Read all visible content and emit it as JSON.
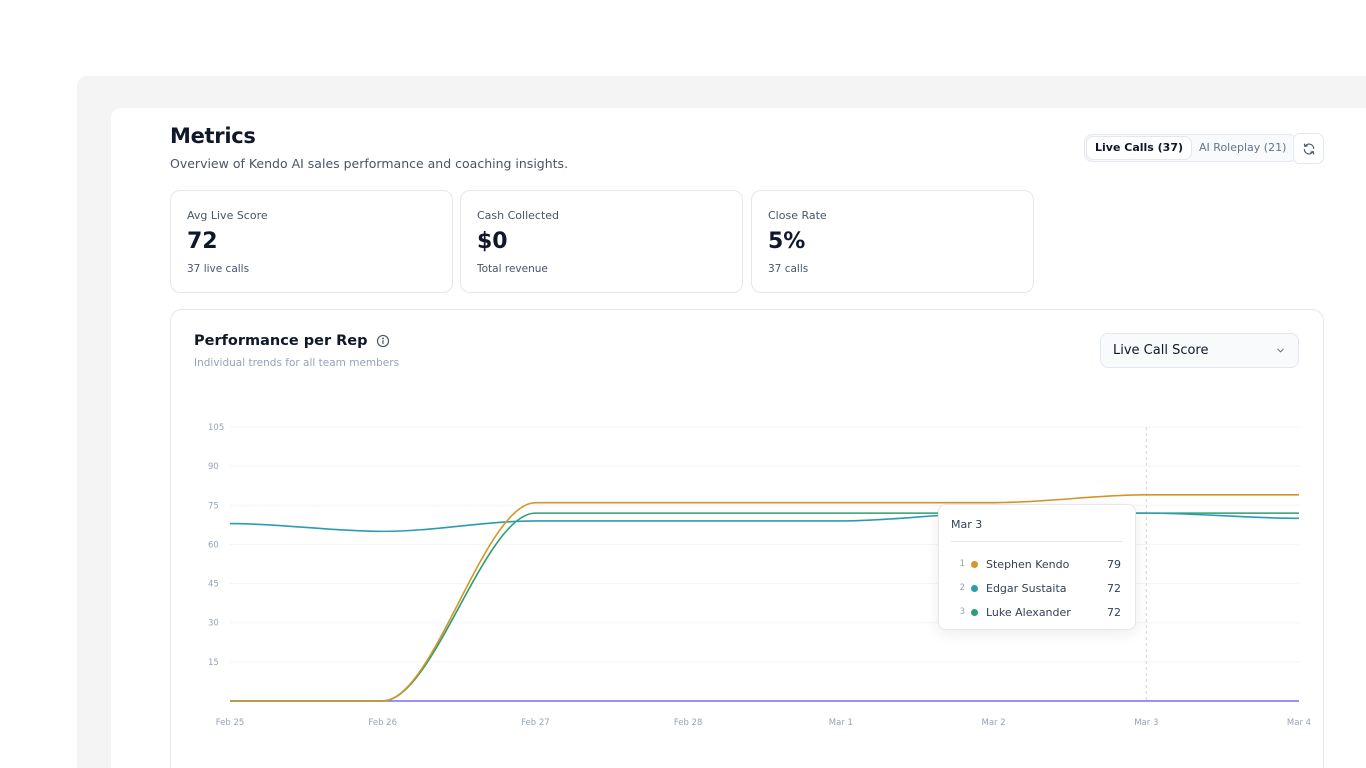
{
  "header": {
    "title": "Metrics",
    "subtitle": "Overview of Kendo AI sales performance and coaching insights."
  },
  "toggle": {
    "live_calls": "Live Calls (37)",
    "ai_roleplay": "AI Roleplay (21)",
    "active": "live_calls"
  },
  "cards": [
    {
      "label": "Avg Live Score",
      "value": "72",
      "sub": "37 live calls"
    },
    {
      "label": "Cash Collected",
      "value": "$0",
      "sub": "Total revenue"
    },
    {
      "label": "Close Rate",
      "value": "5%",
      "sub": "37 calls"
    }
  ],
  "performance": {
    "title": "Performance per Rep",
    "subtitle": "Individual trends for all team members",
    "metric_select": "Live Call Score",
    "info_icon": "info-icon",
    "dropdown_icon": "chevron-down-icon"
  },
  "tooltip": {
    "date": "Mar 3",
    "rows": [
      {
        "rank": "1",
        "name": "Stephen Kendo",
        "value": "79",
        "color": "#d4952a"
      },
      {
        "rank": "2",
        "name": "Edgar Sustaita",
        "value": "72",
        "color": "#2a9cb0"
      },
      {
        "rank": "3",
        "name": "Luke Alexander",
        "value": "72",
        "color": "#2f9e6f"
      }
    ]
  },
  "chart_data": {
    "type": "line",
    "x": [
      "Feb 25",
      "Feb 26",
      "Feb 27",
      "Feb 28",
      "Mar 1",
      "Mar 2",
      "Mar 3",
      "Mar 4"
    ],
    "y_ticks": [
      15,
      30,
      45,
      60,
      75,
      90,
      105
    ],
    "ylim": [
      0,
      105
    ],
    "grid": true,
    "hover_x": "Mar 3",
    "series": [
      {
        "name": "Stephen Kendo",
        "color": "#d4952a",
        "values": [
          0,
          0,
          76,
          76,
          76,
          76,
          79,
          79
        ]
      },
      {
        "name": "Edgar Sustaita",
        "color": "#2a9cb0",
        "values": [
          68,
          65,
          69,
          69,
          69,
          72,
          72,
          70
        ]
      },
      {
        "name": "Luke Alexander",
        "color": "#2f9e6f",
        "values": [
          0,
          0,
          72,
          72,
          72,
          72,
          72,
          72
        ]
      },
      {
        "color": "#7c6cf0",
        "values": [
          0,
          0,
          0,
          0,
          0,
          0,
          0,
          0
        ]
      }
    ]
  }
}
